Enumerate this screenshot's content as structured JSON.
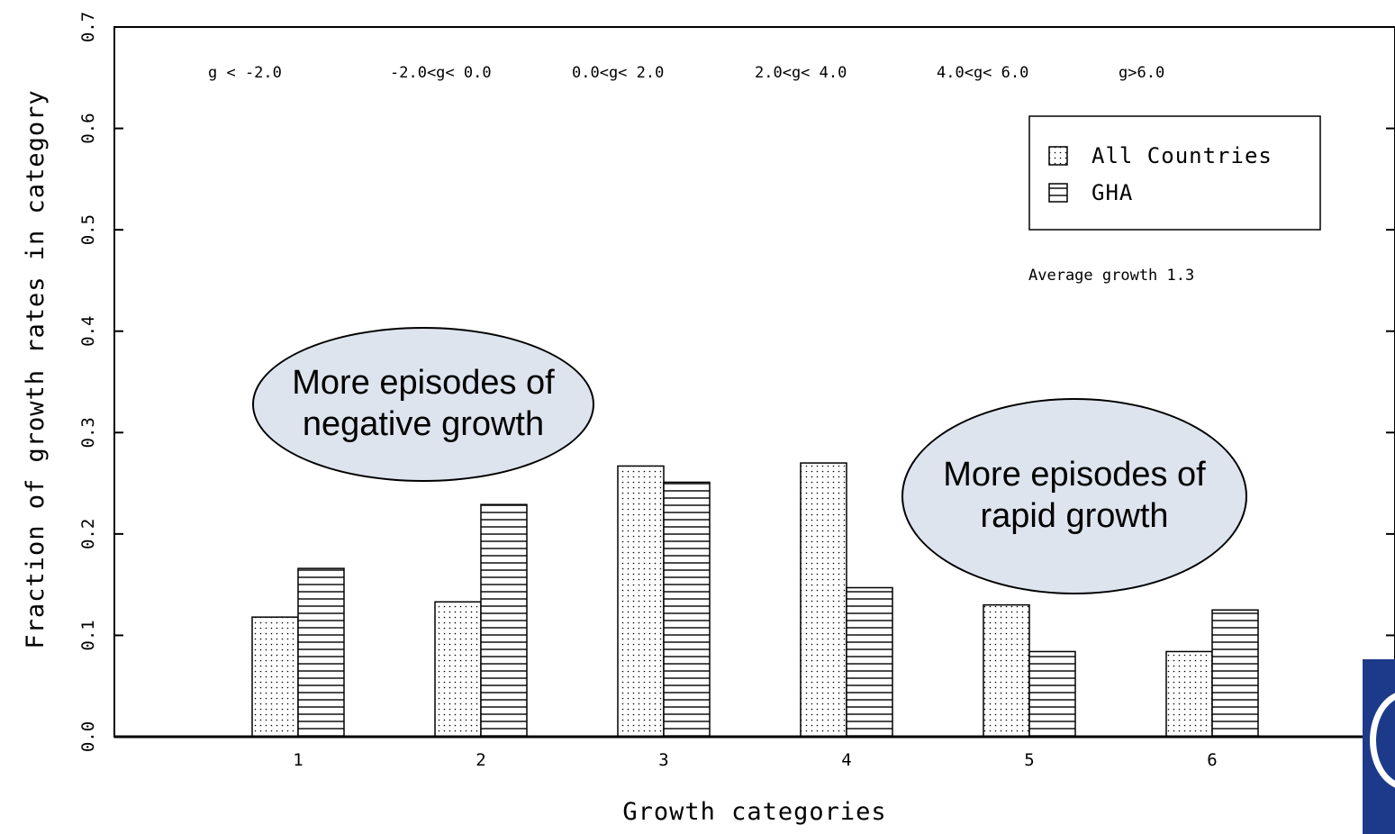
{
  "chart_data": {
    "type": "bar",
    "title": "",
    "xlabel": "Growth categories",
    "ylabel": "Fraction of growth rates in category",
    "ylim": [
      0,
      0.7
    ],
    "yticks": [
      "0.0",
      "0.1",
      "0.2",
      "0.3",
      "0.4",
      "0.5",
      "0.6",
      "0.7"
    ],
    "categories": [
      "1",
      "2",
      "3",
      "4",
      "5",
      "6"
    ],
    "category_headers": [
      "g < -2.0",
      "-2.0<g< 0.0",
      "0.0<g< 2.0",
      "2.0<g< 4.0",
      "4.0<g< 6.0",
      "g>6.0"
    ],
    "series": [
      {
        "name": "All Countries",
        "pattern": "dotted",
        "values": [
          0.118,
          0.133,
          0.267,
          0.27,
          0.13,
          0.084
        ]
      },
      {
        "name": "GHA",
        "pattern": "horizontal-lines",
        "values": [
          0.166,
          0.229,
          0.251,
          0.147,
          0.084,
          0.125
        ]
      }
    ],
    "legend": {
      "placement": "top-right"
    },
    "note": "Average growth 1.3",
    "grid": false
  },
  "callouts": [
    {
      "id": "negative",
      "line1": "More episodes of",
      "line2": "negative growth"
    },
    {
      "id": "rapid",
      "line1": "More episodes of",
      "line2": "rapid growth"
    }
  ],
  "colors": {
    "bar_stroke": "#000000",
    "callout_fill": "#dde4ee",
    "logo_blue": "#1d3a8a"
  }
}
